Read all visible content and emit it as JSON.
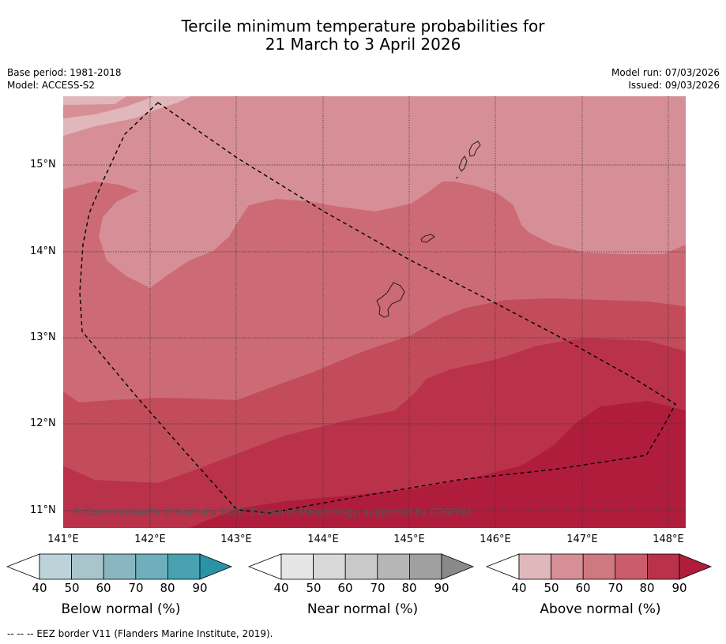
{
  "title_line1": "Tercile minimum temperature probabilities for",
  "title_line2": "21 March to 3 April 2026",
  "base_period": "Base period: 1981-2018",
  "model": "Model: ACCESS-S2",
  "model_run": "Model run: 07/03/2026",
  "issued": "Issued: 09/03/2026",
  "map": {
    "lat_labels": [
      "15°N",
      "14°N",
      "13°N",
      "12°N",
      "11°N"
    ],
    "lon_labels": [
      "141°E",
      "142°E",
      "143°E",
      "144°E",
      "145°E",
      "146°E",
      "147°E",
      "148°E"
    ],
    "copyright": "© Commonwealth of Australia 2026, Bureau of Meteorology, supported by COSPPac",
    "colors": {
      "above_50_60": "#d68f96",
      "above_60_70": "#cc6b75",
      "above_70_80": "#c24c5a",
      "above_80_90": "#b92f46",
      "above_90": "#b01d3c",
      "above_40_50": "#e0b7bb"
    }
  },
  "colorbars": [
    {
      "title": "Below normal (%)",
      "ticks": [
        "40",
        "50",
        "60",
        "70",
        "80",
        "90"
      ],
      "colors": [
        "#ffffff",
        "#bdd3da",
        "#a7c5ca",
        "#8ab6c1",
        "#6eaebd",
        "#48a2b2",
        "#2b93a6"
      ]
    },
    {
      "title": "Near normal (%)",
      "ticks": [
        "40",
        "50",
        "60",
        "70",
        "80",
        "90"
      ],
      "colors": [
        "#ffffff",
        "#e5e5e5",
        "#d8d8d8",
        "#c9c9c9",
        "#b6b6b6",
        "#a0a0a0",
        "#8a8a8a"
      ]
    },
    {
      "title": "Above normal (%)",
      "ticks": [
        "40",
        "50",
        "60",
        "70",
        "80",
        "90"
      ],
      "colors": [
        "#ffffff",
        "#e0b7bb",
        "#d68f96",
        "#cf7880",
        "#c95d6c",
        "#b9324a",
        "#b01d3c"
      ]
    }
  ],
  "footnote": "--  --  -- EEZ border V11 (Flanders Marine Institute, 2019)."
}
